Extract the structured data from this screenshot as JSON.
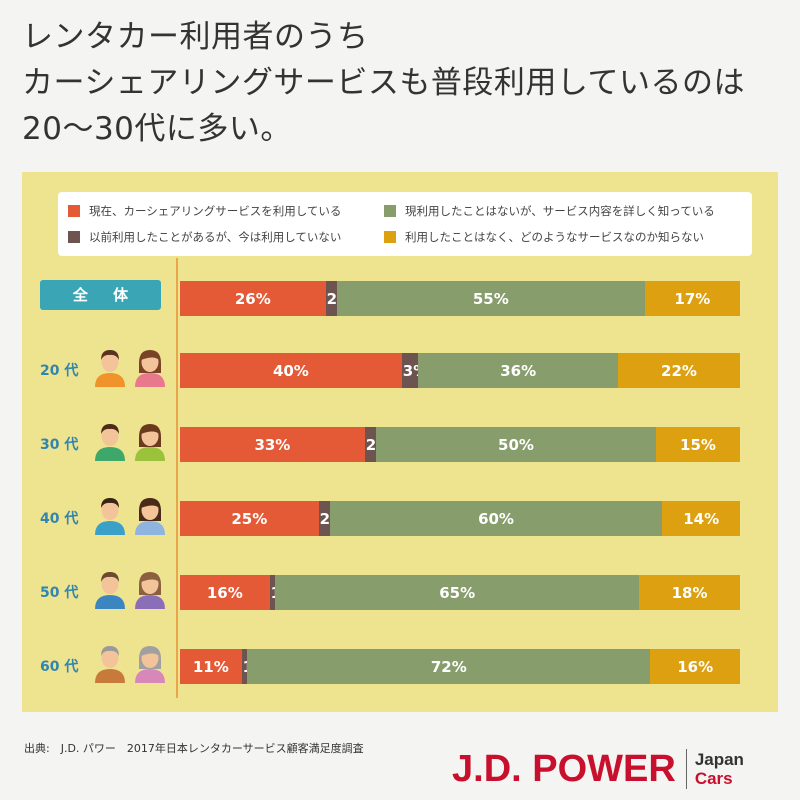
{
  "title_lines": [
    "レンタカー利用者のうち",
    "カーシェアリングサービスも普段利用しているのは",
    "20〜30代に多い。"
  ],
  "colors": {
    "current": "#e55a36",
    "former": "#6e5450",
    "know": "#889d6c",
    "unknown": "#dca010",
    "panel": "#eee38f",
    "label": "#2f86b0",
    "total_label_bg": "#3aa6b5"
  },
  "chart_data": {
    "type": "bar",
    "orientation": "horizontal",
    "stacked": true,
    "percent": true,
    "categories": [
      "全 体",
      "20 代",
      "30 代",
      "40 代",
      "50 代",
      "60 代"
    ],
    "series": [
      {
        "name": "現在、カーシェアリングサービスを利用している",
        "values": [
          26,
          40,
          33,
          25,
          16,
          11
        ]
      },
      {
        "name": "以前利用したことがあるが、今は利用していない",
        "values": [
          2,
          3,
          2,
          2,
          1,
          1
        ]
      },
      {
        "name": "現利用したことはないが、サービス内容を詳しく知っている",
        "values": [
          55,
          36,
          50,
          60,
          65,
          72
        ]
      },
      {
        "name": "利用したことはなく、どのようなサービスなのか知らない",
        "values": [
          17,
          22,
          15,
          14,
          18,
          16
        ]
      }
    ],
    "value_suffix": "%",
    "legend_position": "top"
  },
  "footer": {
    "source": "出典:　J.D. パワー　2017年日本レンタカーサービス顧客満足度調査"
  },
  "logo": {
    "main": "J.D. POWER",
    "sub1": "Japan",
    "sub2": "Cars"
  }
}
